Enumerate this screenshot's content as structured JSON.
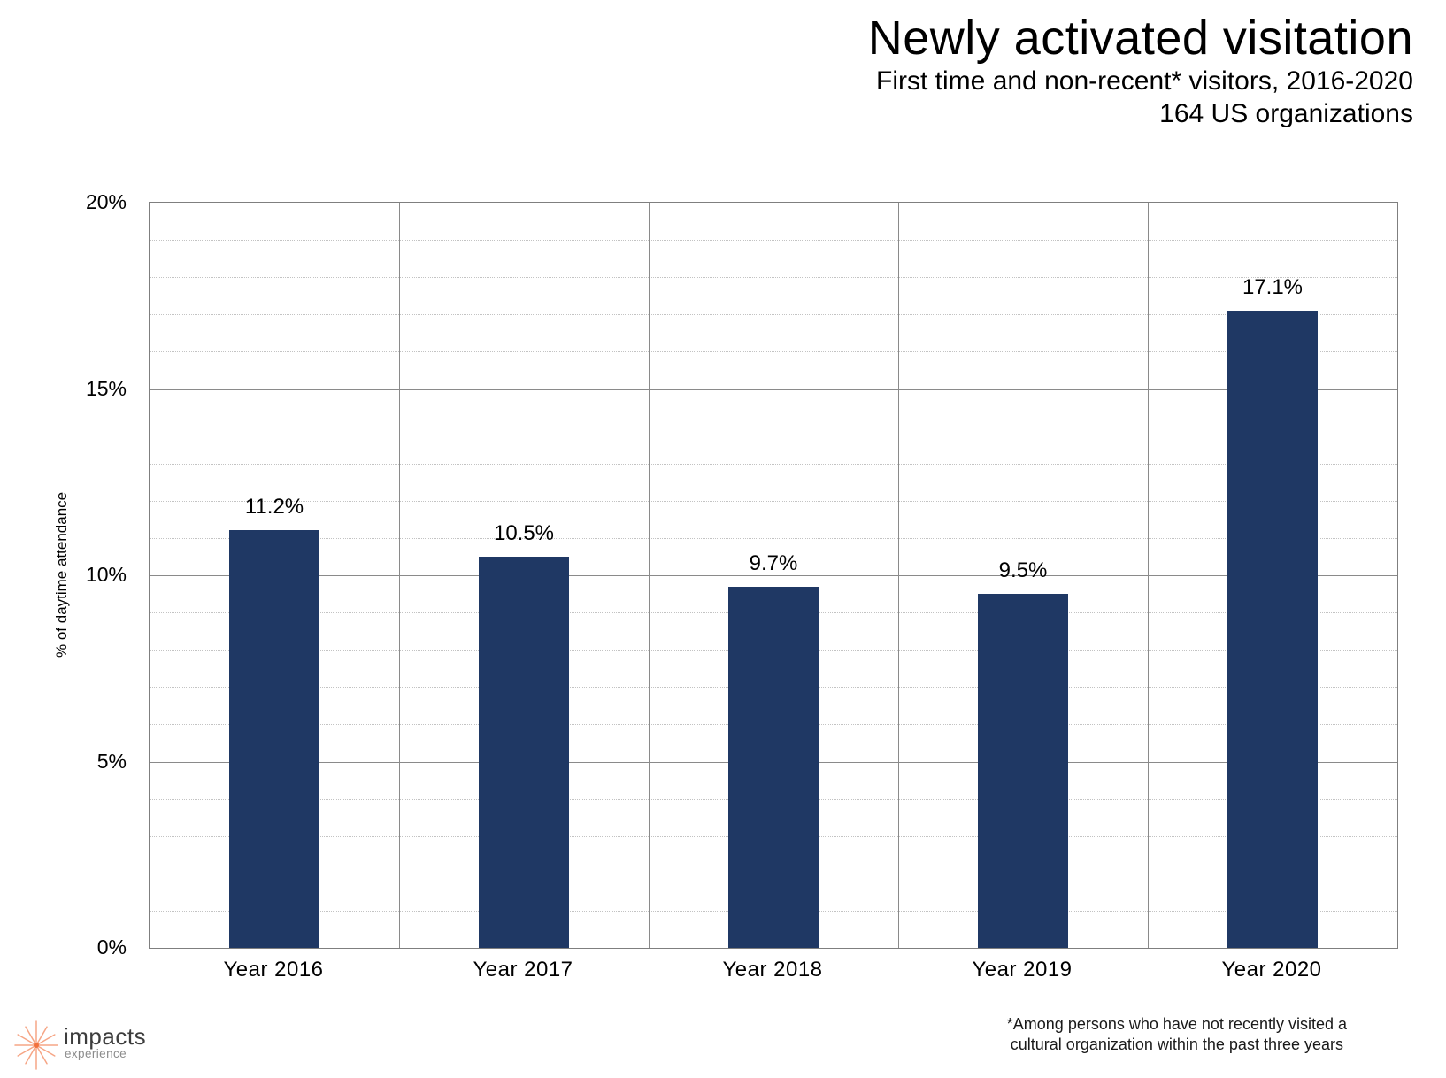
{
  "header": {
    "title": "Newly activated visitation",
    "subtitle1": "First time and non-recent* visitors, 2016-2020",
    "subtitle2": "164 US organizations"
  },
  "chart_data": {
    "type": "bar",
    "title": "Newly activated visitation",
    "categories": [
      "Year 2016",
      "Year 2017",
      "Year 2018",
      "Year 2019",
      "Year 2020"
    ],
    "values": [
      11.2,
      10.5,
      9.7,
      9.5,
      17.1
    ],
    "value_labels": [
      "11.2%",
      "10.5%",
      "9.7%",
      "9.5%",
      "17.1%"
    ],
    "xlabel": "",
    "ylabel": "% of daytime attendance",
    "ylim": [
      0,
      20
    ],
    "y_tick_values": [
      0,
      5,
      10,
      15,
      20
    ],
    "y_tick_labels": [
      "0%",
      "5%",
      "10%",
      "15%",
      "20%"
    ],
    "minor_grid_step": 1,
    "major_grid_step": 5,
    "grid": "major solid horizontal and vertical, minor dotted horizontal",
    "legend_position": "none",
    "bar_color": "#1F3864"
  },
  "footnote": {
    "line1": "*Among persons who have not recently visited a",
    "line2": "cultural organization within the past three years"
  },
  "logo": {
    "name": "impacts",
    "subname": "experience",
    "ray_color": "#F6A585",
    "dot_color": "#F1713D"
  },
  "colors": {
    "bar": "#1F3864",
    "major_grid": "#8a8a8a",
    "minor_grid": "#c3c3c3",
    "plot_border": "#7f7f7f",
    "background": "#ffffff",
    "text": "#000000"
  }
}
